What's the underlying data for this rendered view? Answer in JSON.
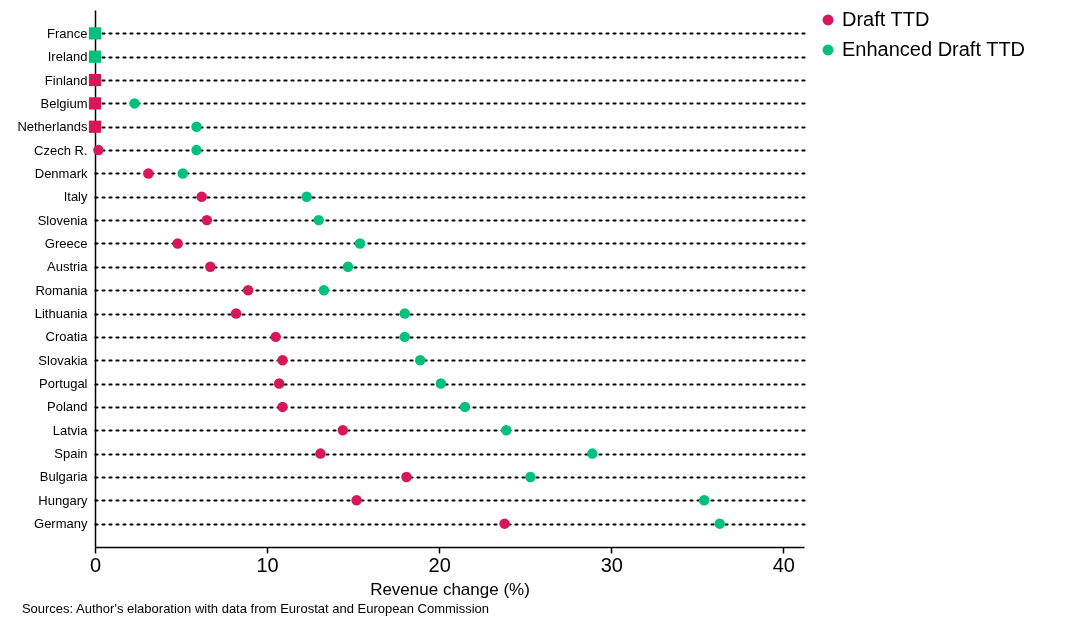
{
  "chart_data": {
    "type": "scatter",
    "xlabel": "Revenue change (%)",
    "categories": [
      "France",
      "Ireland",
      "Finland",
      "Belgium",
      "Netherlands",
      "Czech R.",
      "Denmark",
      "Italy",
      "Slovenia",
      "Greece",
      "Austria",
      "Romania",
      "Lithuania",
      "Croatia",
      "Slovakia",
      "Portugal",
      "Poland",
      "Latvia",
      "Spain",
      "Bulgaria",
      "Hungary",
      "Germany"
    ],
    "orientation": "horizontal",
    "series": [
      {
        "name": "Draft TTD",
        "color": "#d6185a",
        "marker": "circle",
        "values": [
          null,
          null,
          null,
          null,
          null,
          0.2,
          3.1,
          6.2,
          6.5,
          4.8,
          6.7,
          8.9,
          8.2,
          10.5,
          10.9,
          10.7,
          10.9,
          14.4,
          13.1,
          18.1,
          15.2,
          23.8
        ]
      },
      {
        "name": "Enhanced Draft TTD",
        "color": "#00c17c",
        "marker": "circle",
        "values": [
          null,
          null,
          null,
          2.3,
          5.9,
          5.9,
          5.1,
          12.3,
          13.0,
          15.4,
          14.7,
          13.3,
          18.0,
          18.0,
          18.9,
          20.1,
          21.5,
          23.9,
          28.9,
          25.3,
          35.4,
          36.3
        ]
      },
      {
        "color": "#d6185a",
        "marker": "square",
        "values": [
          null,
          null,
          0,
          0,
          0,
          null,
          null,
          null,
          null,
          null,
          null,
          null,
          null,
          null,
          null,
          null,
          null,
          null,
          null,
          null,
          null,
          null
        ]
      },
      {
        "color": "#00c17c",
        "marker": "square",
        "values": [
          0,
          0,
          null,
          null,
          null,
          null,
          null,
          null,
          null,
          null,
          null,
          null,
          null,
          null,
          null,
          null,
          null,
          null,
          null,
          null,
          null,
          null
        ]
      }
    ],
    "xlim": [
      0,
      41.2
    ],
    "xticks": [
      0,
      10,
      20,
      30,
      40
    ],
    "grid": "y",
    "line_style": "dotted",
    "legend": "right",
    "annotations": [
      "Sources: Author's elaboration with data from Eurostat and European Commission"
    ]
  }
}
